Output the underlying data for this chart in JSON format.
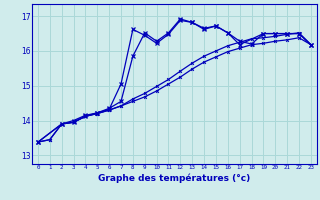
{
  "background_color": "#d0ecec",
  "grid_color": "#aad8d8",
  "line_color": "#0000bb",
  "xlabel": "Graphe des températures (°c)",
  "ylabel_ticks": [
    13,
    14,
    15,
    16,
    17
  ],
  "xlim": [
    -0.5,
    23.5
  ],
  "ylim": [
    12.75,
    17.35
  ],
  "x_ticks": [
    0,
    1,
    2,
    3,
    4,
    5,
    6,
    7,
    8,
    9,
    10,
    11,
    12,
    13,
    14,
    15,
    16,
    17,
    18,
    19,
    20,
    21,
    22,
    23
  ],
  "line1_x": [
    0,
    1,
    2,
    3,
    4,
    5,
    6,
    7,
    8,
    9,
    10,
    11,
    12,
    13,
    14,
    15,
    16,
    17,
    18,
    19,
    20,
    21,
    22,
    23
  ],
  "line1_y": [
    13.38,
    13.45,
    13.9,
    13.95,
    14.12,
    14.2,
    14.3,
    14.42,
    14.55,
    14.68,
    14.85,
    15.05,
    15.25,
    15.48,
    15.68,
    15.83,
    15.98,
    16.08,
    16.18,
    16.22,
    16.28,
    16.32,
    16.38,
    16.18
  ],
  "line2_x": [
    0,
    1,
    2,
    3,
    4,
    5,
    6,
    7,
    8,
    9,
    10,
    11,
    12,
    13,
    14,
    15,
    16,
    17,
    18,
    19,
    20,
    21,
    22,
    23
  ],
  "line2_y": [
    13.38,
    13.45,
    13.9,
    13.95,
    14.12,
    14.2,
    14.3,
    14.42,
    14.62,
    14.78,
    14.98,
    15.18,
    15.42,
    15.65,
    15.85,
    16.0,
    16.15,
    16.25,
    16.35,
    16.38,
    16.42,
    16.48,
    16.52,
    16.18
  ],
  "line3_x": [
    0,
    2,
    3,
    4,
    5,
    6,
    7,
    8,
    9,
    10,
    11,
    12,
    13,
    14,
    15,
    16,
    17,
    19,
    20,
    21,
    22,
    23
  ],
  "line3_y": [
    13.38,
    13.9,
    13.95,
    14.12,
    14.22,
    14.32,
    15.05,
    16.62,
    16.45,
    16.22,
    16.48,
    16.88,
    16.82,
    16.65,
    16.72,
    16.52,
    16.18,
    16.5,
    16.5,
    16.5,
    16.5,
    16.18
  ],
  "line4_x": [
    0,
    2,
    3,
    4,
    5,
    6,
    7,
    8,
    9,
    10,
    11,
    12,
    13,
    14,
    15,
    16,
    17,
    18,
    19,
    20,
    21,
    22,
    23
  ],
  "line4_y": [
    13.38,
    13.9,
    14.0,
    14.15,
    14.22,
    14.35,
    14.55,
    15.85,
    16.52,
    16.28,
    16.52,
    16.92,
    16.82,
    16.62,
    16.72,
    16.52,
    16.28,
    16.2,
    16.5,
    16.5,
    16.5,
    16.5,
    16.18
  ]
}
